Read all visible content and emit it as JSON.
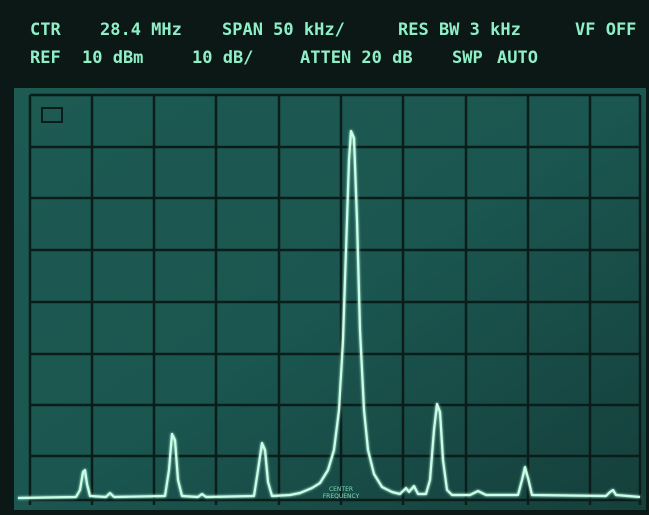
{
  "header": {
    "row1": [
      "CTR",
      "28.4 MHz",
      "SPAN 50 kHz/",
      "RES BW 3 kHz",
      "VF OFF"
    ],
    "row2": [
      "REF",
      "10 dBm",
      "10 dB/",
      "ATTEN 20 dB",
      "SWP",
      "AUTO"
    ]
  },
  "screen": {
    "center_label": [
      "CENTER",
      "FREQUENCY"
    ]
  }
}
